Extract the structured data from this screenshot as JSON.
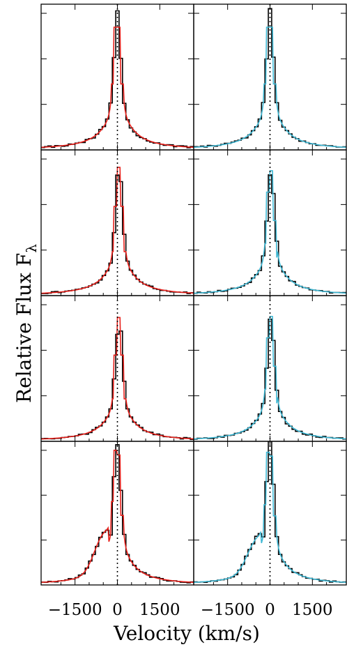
{
  "chart_data": {
    "type": "line",
    "layout": "4 rows x 2 columns of panels sharing the velocity axis",
    "xlabel": "Velocity (km/s)",
    "ylabel_main": "Relative Flux F",
    "ylabel_subscript": "λ",
    "xlim": [
      -2700,
      2700
    ],
    "xticks": [
      -1500,
      0,
      1500
    ],
    "xtick_labels": [
      "−1500",
      "0",
      "1500"
    ],
    "reference_line_x": 0,
    "colors": {
      "observed": "#000000",
      "model_left": "#e8201b",
      "model_right": "#3eb8d4",
      "reference": "#000000"
    },
    "panels": [
      {
        "row": 0,
        "col": 0,
        "model_color": "#e8201b",
        "peak": 0.93,
        "peak_x": 0,
        "bump": 0,
        "ylim": [
          0,
          1
        ]
      },
      {
        "row": 0,
        "col": 1,
        "model_color": "#3eb8d4",
        "peak": 0.93,
        "peak_x": 0,
        "bump": 0,
        "ylim": [
          0,
          1
        ]
      },
      {
        "row": 1,
        "col": 0,
        "model_color": "#e8201b",
        "peak": 0.88,
        "peak_x": 60,
        "bump": 0,
        "ylim": [
          0,
          1
        ]
      },
      {
        "row": 1,
        "col": 1,
        "model_color": "#3eb8d4",
        "peak": 0.88,
        "peak_x": 30,
        "bump": 0,
        "ylim": [
          0,
          1
        ]
      },
      {
        "row": 2,
        "col": 0,
        "model_color": "#e8201b",
        "peak": 0.85,
        "peak_x": 60,
        "bump": 0,
        "ylim": [
          0,
          1
        ]
      },
      {
        "row": 2,
        "col": 1,
        "model_color": "#3eb8d4",
        "peak": 0.88,
        "peak_x": 30,
        "bump": 0,
        "ylim": [
          0,
          1
        ]
      },
      {
        "row": 3,
        "col": 0,
        "model_color": "#e8201b",
        "peak": 1.0,
        "peak_x": 0,
        "bump": 0.21,
        "ylim": [
          0,
          1.05
        ]
      },
      {
        "row": 3,
        "col": 1,
        "model_color": "#3eb8d4",
        "peak": 1.0,
        "peak_x": 0,
        "bump": 0.17,
        "ylim": [
          0,
          1.05
        ]
      }
    ]
  }
}
